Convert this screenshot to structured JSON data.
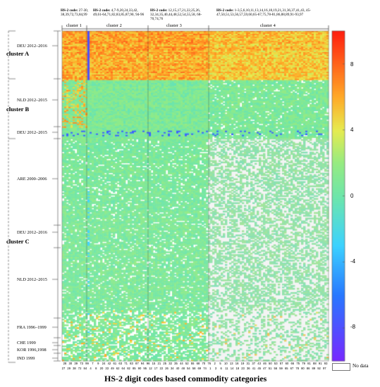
{
  "chart_data": {
    "type": "heatmap",
    "xlabel": "HS-2 digit codes based commodity categories",
    "x_cluster_headers": [
      {
        "name": "cluster 1",
        "codes_text_prefix": "HS-2 code:",
        "codes_text": " 27-30, 38,39,72,73,84,99"
      },
      {
        "name": "cluster 2",
        "codes_text_prefix": "HS-2 code:",
        "codes_text": " 4,7-9,20,24,33,42, 49,61-64,71,82,83,85,87,90, 94-96"
      },
      {
        "name": "cluster 3",
        "codes_text_prefix": "HS-2 code:",
        "codes_text": " 12,15,17,21,22,25,26, 32,34,35,40,44,48,52,54,55,58, 68-70,74,76"
      },
      {
        "name": "cluster 4",
        "codes_text_prefix": "HS-2 code:",
        "codes_text": " 1-3,5,6,10,11,13,14,16,18,19,21,31,36,37,41,43, 45-47,50,51,53,56,57,59,60,65-67,75,78-81,86,88,89,91-93,97"
      }
    ],
    "row_clusters": [
      "cluster A",
      "cluster B",
      "cluster C"
    ],
    "row_country_labels": [
      "DEU 2012–2016",
      "NLD 2012–2015",
      "DEU 2012–2015",
      "ARE 2000–2006",
      "DEU 2012–2016",
      "NLD 2012–2015",
      "FRA 1996–1999",
      "CHE 1999",
      "KOR 1996,1998",
      "IND 1999"
    ],
    "x_tick_labels_top": [
      "28",
      "30",
      "39",
      "73",
      "99",
      "7",
      "9",
      "24",
      "42",
      "61",
      "63",
      "71",
      "83",
      "87",
      "94",
      "96",
      "15",
      "21",
      "25",
      "32",
      "35",
      "44",
      "52",
      "55",
      "68",
      "70",
      "76",
      "2",
      "5",
      "10",
      "13",
      "16",
      "19",
      "31",
      "37",
      "43",
      "46",
      "50",
      "53",
      "57",
      "60",
      "66",
      "75",
      "79",
      "81",
      "88",
      "91",
      "93"
    ],
    "x_tick_labels_bottom": [
      "27",
      "29",
      "38",
      "72",
      "84",
      "4",
      "8",
      "20",
      "33",
      "49",
      "62",
      "64",
      "82",
      "85",
      "90",
      "95",
      "12",
      "17",
      "22",
      "26",
      "34",
      "40",
      "48",
      "54",
      "58",
      "69",
      "74",
      "1",
      "3",
      "6",
      "11",
      "14",
      "18",
      "23",
      "36",
      "41",
      "45",
      "47",
      "51",
      "56",
      "59",
      "65",
      "67",
      "78",
      "80",
      "86",
      "89",
      "92",
      "97"
    ],
    "colorbar": {
      "range": [
        -10,
        10
      ],
      "ticks": [
        {
          "value": 8,
          "label": "8"
        },
        {
          "value": 4,
          "label": "4"
        },
        {
          "value": 0,
          "label": "0"
        },
        {
          "value": -4,
          "label": "-4"
        },
        {
          "value": -8,
          "label": "-8"
        }
      ]
    },
    "legend": {
      "no_data_label": "No data",
      "no_data_color": "#ffffff"
    },
    "colors": {
      "high": "#ff2a10",
      "mid_high": "#ffd23a",
      "mid": "#6fe6a0",
      "low": "#3fd0ff",
      "very_low": "#7a2bff"
    },
    "value_ranges": {
      "cluster_A_typical": [
        5,
        9
      ],
      "cluster_B_typical": [
        -1,
        3
      ],
      "cluster_C_typical": [
        -1,
        2
      ]
    }
  }
}
